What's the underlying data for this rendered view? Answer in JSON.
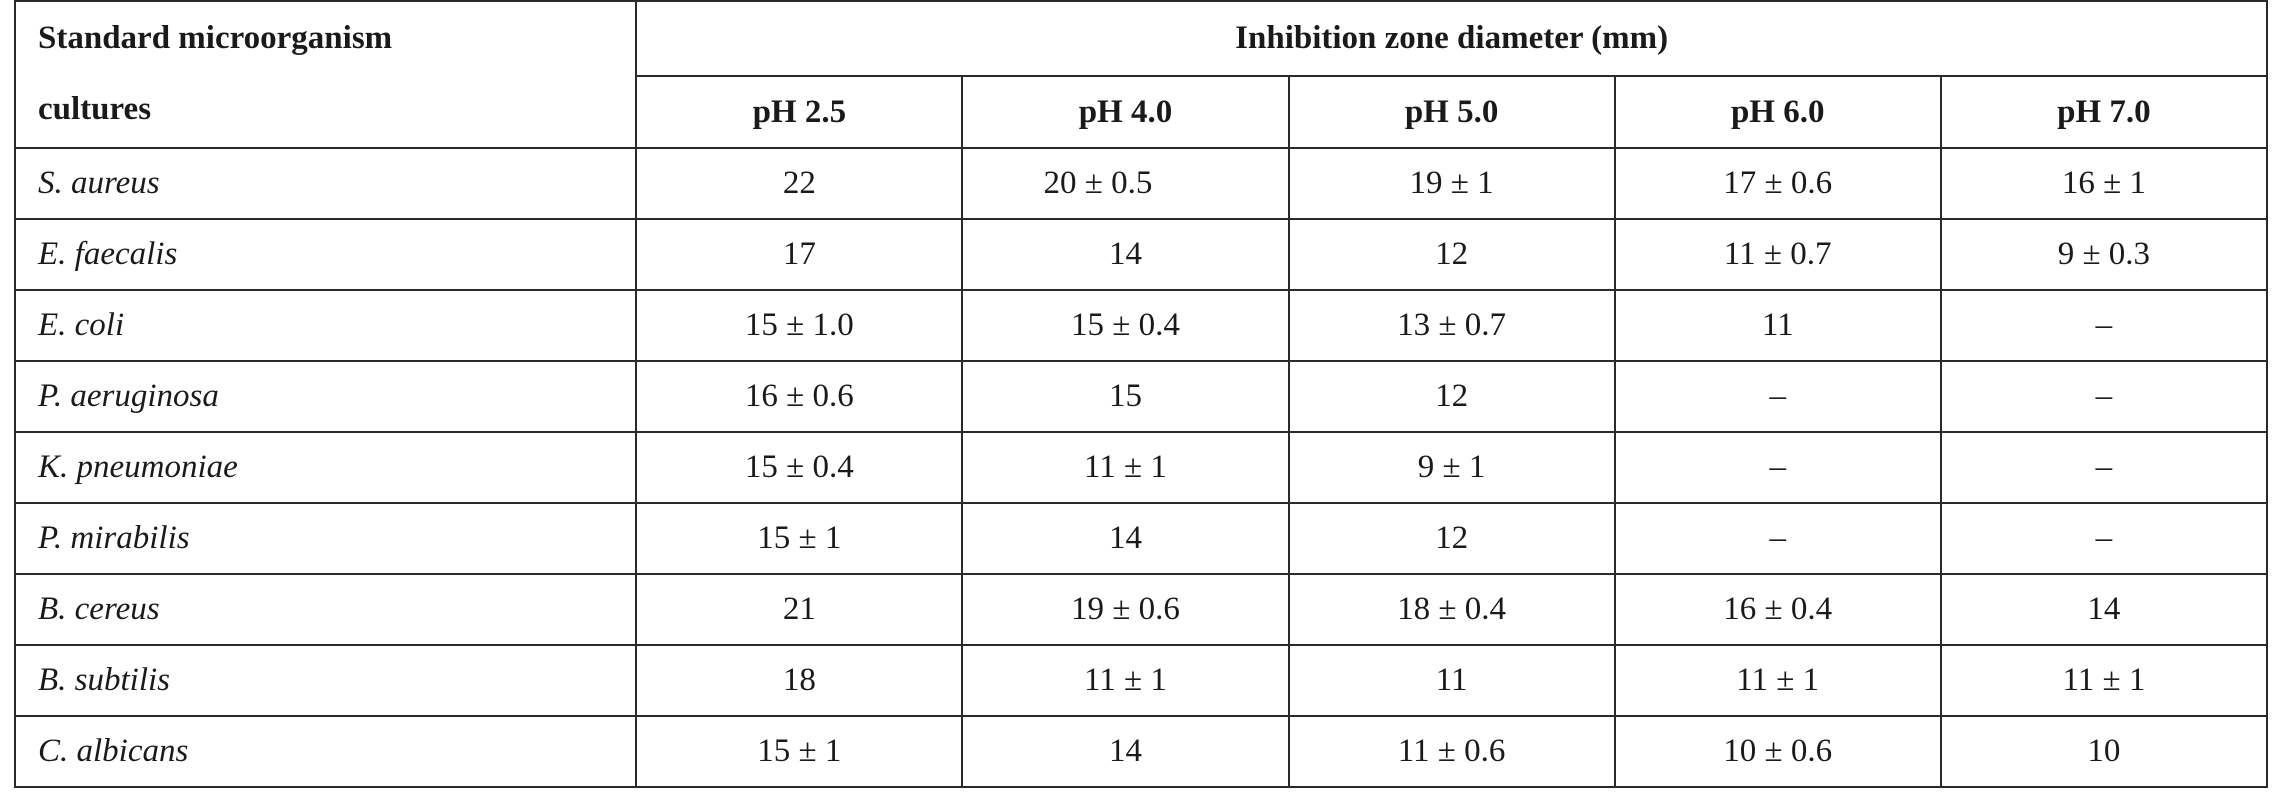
{
  "table": {
    "first_header_line1": "Standard microorganism",
    "first_header_line2": "cultures",
    "group_header": "Inhibition zone diameter (mm)",
    "ph_headers": [
      "pH 2.5",
      "pH 4.0",
      "pH 5.0",
      "pH 6.0",
      "pH 7.0"
    ],
    "rows": [
      {
        "organism": "S. aureus",
        "values": [
          "22",
          "20 ± 0.5",
          "19 ± 1",
          "17 ± 0.6",
          "16 ± 1"
        ]
      },
      {
        "organism": "E. faecalis",
        "values": [
          "17",
          "14",
          "12",
          "11 ± 0.7",
          "9 ± 0.3"
        ]
      },
      {
        "organism": "E. coli",
        "values": [
          "15 ± 1.0",
          "15 ± 0.4",
          "13 ± 0.7",
          "11",
          "–"
        ]
      },
      {
        "organism": "P. aeruginosa",
        "values": [
          "16 ± 0.6",
          "15",
          "12",
          "–",
          "–"
        ]
      },
      {
        "organism": "K. pneumoniae",
        "values": [
          "15 ± 0.4",
          "11 ± 1",
          "9 ± 1",
          "–",
          "–"
        ]
      },
      {
        "organism": "P. mirabilis",
        "values": [
          "15 ± 1",
          "14",
          "12",
          "–",
          "–"
        ]
      },
      {
        "organism": "B. cereus",
        "values": [
          "21",
          "19 ± 0.6",
          "18 ± 0.4",
          "16 ± 0.4",
          "14"
        ]
      },
      {
        "organism": "B. subtilis",
        "values": [
          "18",
          "11 ± 1",
          "11",
          "11 ± 1",
          "11 ± 1"
        ]
      },
      {
        "organism": "C. albicans",
        "values": [
          "15 ± 1",
          "14",
          "11 ± 0.6",
          "10 ± 0.6",
          "10"
        ]
      }
    ]
  }
}
